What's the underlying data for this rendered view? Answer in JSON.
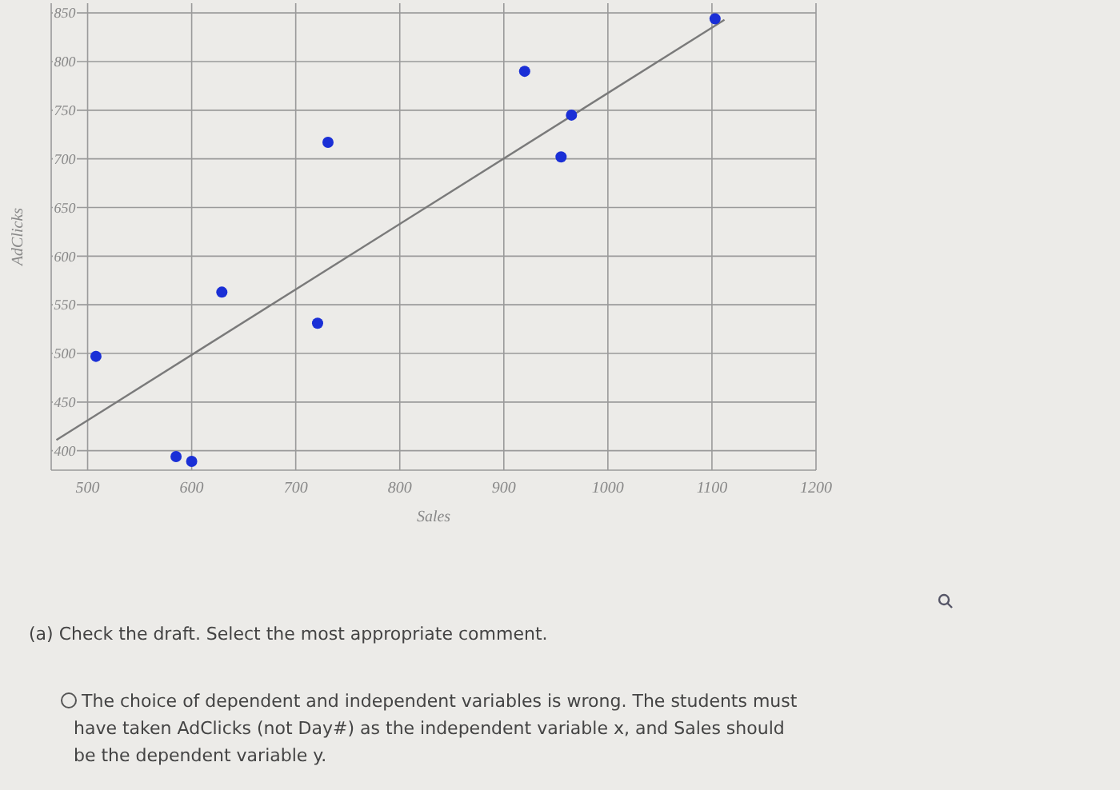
{
  "chart_data": {
    "type": "scatter",
    "xlabel": "Sales",
    "ylabel": "AdClicks",
    "xlim": [
      465,
      1200
    ],
    "ylim": [
      380,
      860
    ],
    "xticks": [
      500,
      600,
      700,
      800,
      900,
      1000,
      1100,
      1200
    ],
    "yticks": [
      400,
      450,
      500,
      550,
      600,
      650,
      700,
      750,
      800,
      850
    ],
    "grid": true,
    "marker": "circle",
    "series": [
      {
        "color": "#1a2fd6",
        "x": [
          508,
          585,
          600,
          629,
          721,
          731,
          920,
          955,
          965,
          1103
        ],
        "values": [
          497,
          394,
          389,
          563,
          531,
          717,
          790,
          702,
          745,
          844
        ]
      },
      {
        "type": "line",
        "color": "#7a7a7a",
        "marker": "none",
        "x": [
          470,
          1112
        ],
        "values": [
          411,
          843
        ]
      }
    ],
    "annotations": [
      "(a) Check the draft. Select the most appropriate comment.",
      "The choice of dependent and independent variables is wrong. The students must have taken AdClicks (not Day#) as the independent variable x, and Sales should be the dependent variable y."
    ]
  }
}
